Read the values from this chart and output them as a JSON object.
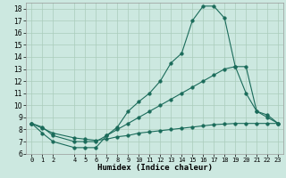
{
  "title": "",
  "xlabel": "Humidex (Indice chaleur)",
  "bg_color": "#cce8e0",
  "grid_color": "#aaccbb",
  "line_color": "#1a6b5a",
  "xlim": [
    -0.5,
    23.5
  ],
  "ylim": [
    6,
    18.5
  ],
  "yticks": [
    6,
    7,
    8,
    9,
    10,
    11,
    12,
    13,
    14,
    15,
    16,
    17,
    18
  ],
  "xticks": [
    0,
    1,
    2,
    4,
    5,
    6,
    7,
    8,
    9,
    10,
    11,
    12,
    13,
    14,
    15,
    16,
    17,
    18,
    19,
    20,
    21,
    22,
    23
  ],
  "series": [
    {
      "x": [
        0,
        1,
        2,
        4,
        5,
        6,
        7,
        8,
        9,
        10,
        11,
        12,
        13,
        14,
        15,
        16,
        17,
        18,
        19,
        20,
        21,
        22,
        23
      ],
      "y": [
        8.5,
        7.7,
        7.0,
        6.5,
        6.5,
        6.5,
        7.5,
        8.2,
        9.5,
        10.3,
        11.0,
        12.0,
        13.5,
        14.3,
        17.0,
        18.2,
        18.2,
        17.2,
        13.2,
        13.2,
        9.5,
        9.2,
        8.5
      ]
    },
    {
      "x": [
        0,
        1,
        2,
        4,
        5,
        6,
        7,
        8,
        9,
        10,
        11,
        12,
        13,
        14,
        15,
        16,
        17,
        18,
        19,
        20,
        21,
        22,
        23
      ],
      "y": [
        8.5,
        8.2,
        7.5,
        7.0,
        7.0,
        7.0,
        7.5,
        8.0,
        8.5,
        9.0,
        9.5,
        10.0,
        10.5,
        11.0,
        11.5,
        12.0,
        12.5,
        13.0,
        13.2,
        11.0,
        9.5,
        9.0,
        8.5
      ]
    },
    {
      "x": [
        0,
        1,
        2,
        4,
        5,
        6,
        7,
        8,
        9,
        10,
        11,
        12,
        13,
        14,
        15,
        16,
        17,
        18,
        19,
        20,
        21,
        22,
        23
      ],
      "y": [
        8.5,
        8.1,
        7.7,
        7.3,
        7.2,
        7.1,
        7.2,
        7.4,
        7.5,
        7.7,
        7.8,
        7.9,
        8.0,
        8.1,
        8.2,
        8.3,
        8.4,
        8.45,
        8.5,
        8.5,
        8.5,
        8.5,
        8.5
      ]
    }
  ]
}
